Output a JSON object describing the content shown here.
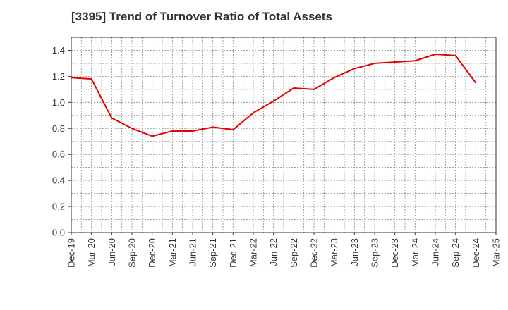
{
  "chart_data": {
    "type": "line",
    "title": "[3395]  Trend of Turnover Ratio of Total Assets",
    "xlabel": "",
    "ylabel": "",
    "x_ticks": [
      "Dec-19",
      "Mar-20",
      "Jun-20",
      "Sep-20",
      "Dec-20",
      "Mar-21",
      "Jun-21",
      "Sep-21",
      "Dec-21",
      "Mar-22",
      "Jun-22",
      "Sep-22",
      "Dec-22",
      "Mar-23",
      "Jun-23",
      "Sep-23",
      "Dec-23",
      "Mar-24",
      "Jun-24",
      "Sep-24",
      "Dec-24",
      "Mar-25"
    ],
    "y_ticks": [
      "0.0",
      "0.2",
      "0.4",
      "0.6",
      "0.8",
      "1.0",
      "1.2",
      "1.4"
    ],
    "ylim": [
      0,
      1.5
    ],
    "grid": true,
    "series": [
      {
        "color": "#e60000",
        "x": [
          "Dec-19",
          "Mar-20",
          "Jun-20",
          "Sep-20",
          "Dec-20",
          "Mar-21",
          "Jun-21",
          "Sep-21",
          "Dec-21",
          "Mar-22",
          "Jun-22",
          "Sep-22",
          "Dec-22",
          "Mar-23",
          "Jun-23",
          "Sep-23",
          "Dec-23",
          "Mar-24",
          "Jun-24",
          "Sep-24",
          "Dec-24"
        ],
        "values": [
          1.19,
          1.18,
          0.88,
          0.8,
          0.74,
          0.78,
          0.78,
          0.81,
          0.79,
          0.92,
          1.01,
          1.11,
          1.1,
          1.19,
          1.26,
          1.3,
          1.31,
          1.32,
          1.37,
          1.36,
          1.15
        ]
      }
    ]
  }
}
